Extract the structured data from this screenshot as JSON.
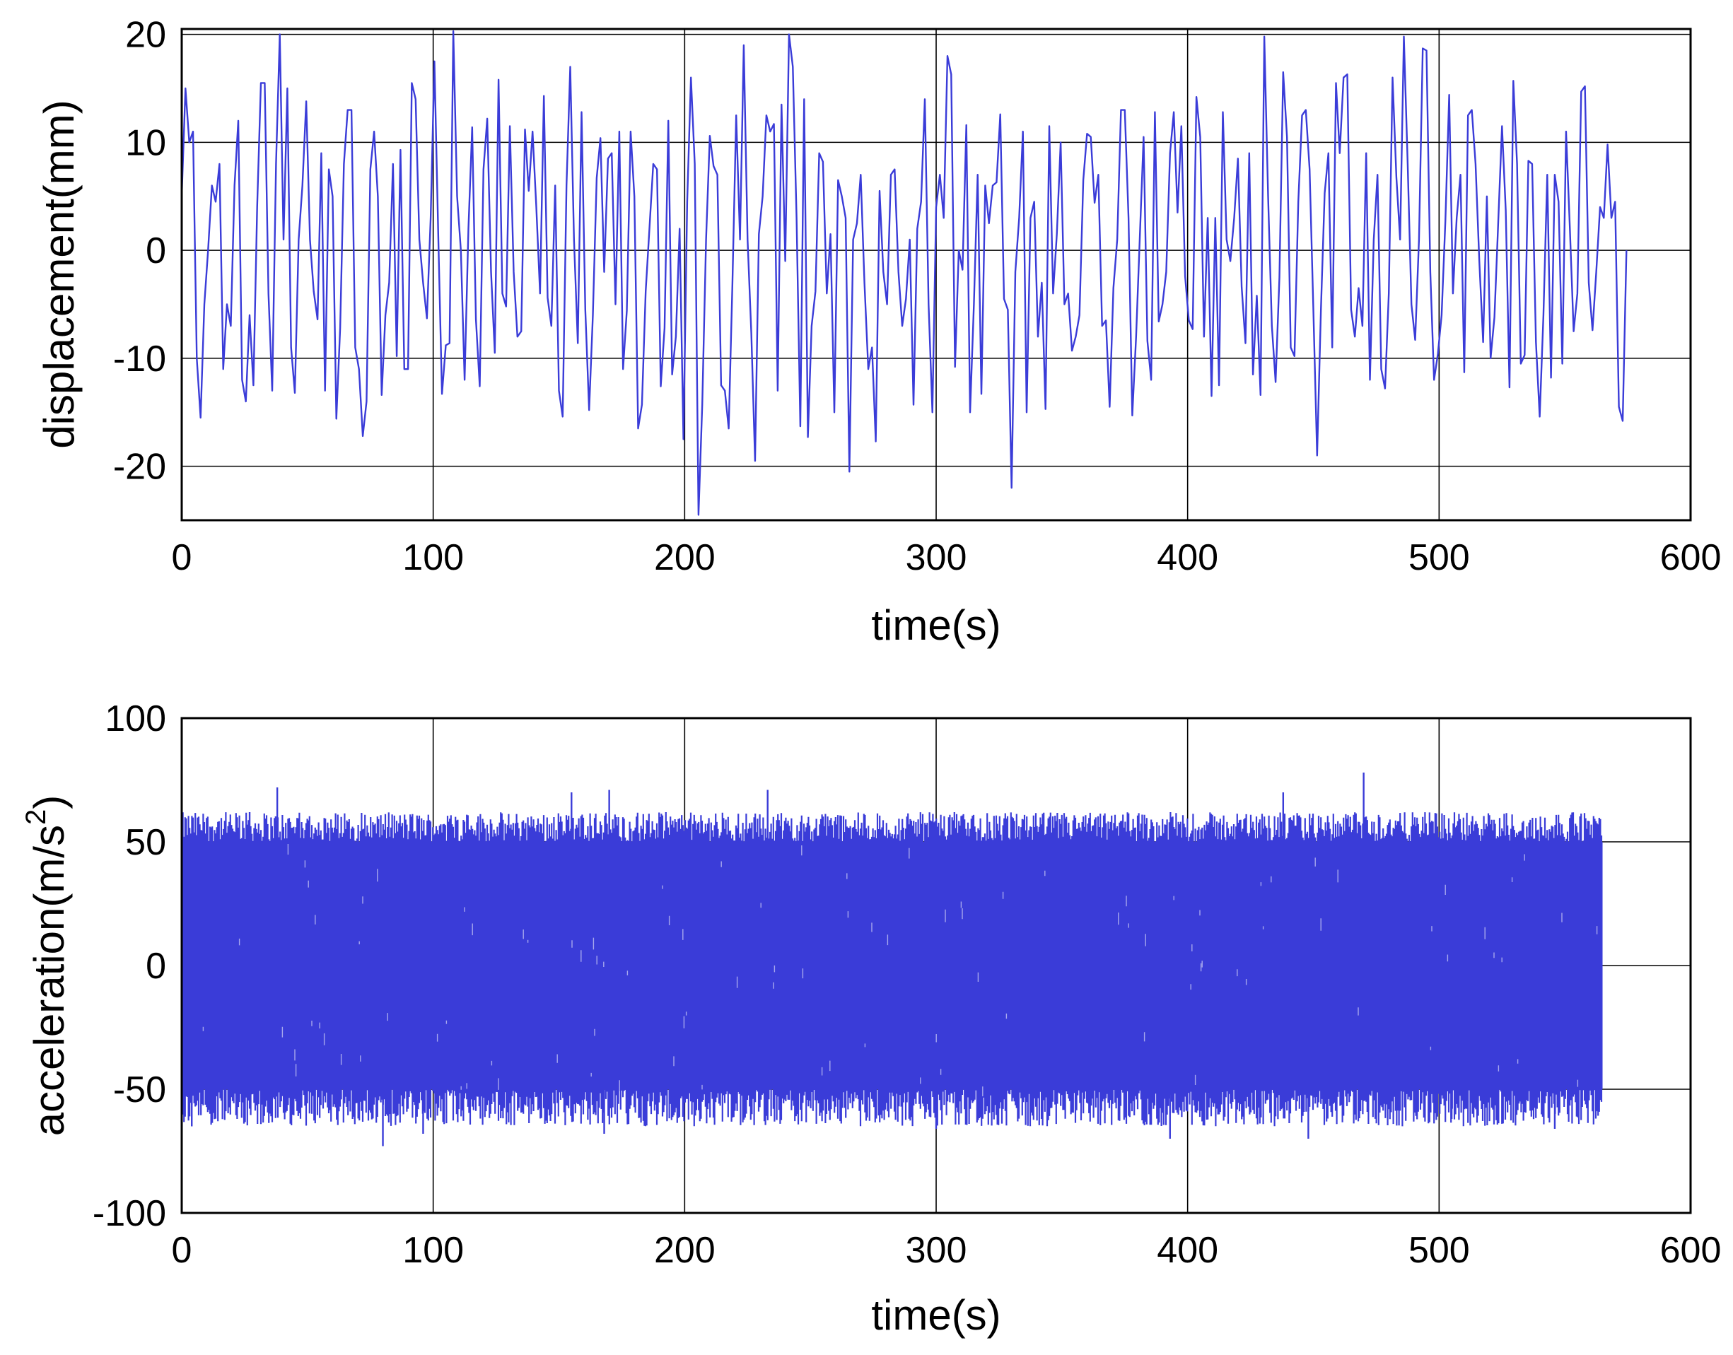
{
  "chart_data": [
    {
      "type": "line",
      "xlabel": "time(s)",
      "ylabel": "displacement(mm)",
      "xlim": [
        0,
        600
      ],
      "ylim": [
        -25,
        20.5
      ],
      "xticks": [
        "0",
        "100",
        "200",
        "300",
        "400",
        "500",
        "600"
      ],
      "yticks": [
        "20",
        "10",
        "0",
        "-10",
        "-20"
      ],
      "grid": true,
      "color": "#3a3cd8",
      "series": [
        {
          "sampling_interval_s": 1.5,
          "x_start": 0,
          "values": [
            5,
            15,
            10,
            11,
            -10,
            -15.5,
            -5,
            0,
            6,
            4.5,
            8,
            -11,
            -5,
            -7,
            6,
            12,
            -12,
            -14,
            -6,
            -12.5,
            4,
            15.5,
            15.5,
            -4,
            -13,
            8,
            20,
            1,
            15,
            -9,
            -13.2,
            1,
            6,
            13.8,
            1,
            -3.8,
            -6.4,
            9,
            -13,
            7.5,
            5,
            -15.6,
            -7.2,
            8,
            13,
            13,
            -9,
            -11,
            -17.2,
            -14,
            7.5,
            11,
            5,
            -13.4,
            -6,
            -3,
            8,
            -9.8,
            9.3,
            -11,
            -11,
            15.5,
            14,
            1,
            -3,
            -6.3,
            3,
            17.5,
            1.5,
            -13.3,
            -8.8,
            -8.6,
            20.3,
            5,
            0,
            -12,
            2,
            11.4,
            -6.4,
            -12.6,
            7.5,
            12.2,
            -2,
            -9.5,
            15.8,
            -4,
            -5.2,
            11.5,
            -2,
            -8,
            -7.5,
            11.2,
            5.5,
            11,
            4,
            -4,
            14.3,
            -4.4,
            -7,
            6,
            -13,
            -15.4,
            6,
            17,
            1,
            -8.6,
            12.8,
            -5.5,
            -14.8,
            -6,
            6.7,
            10.4,
            -2,
            8.5,
            9,
            -5,
            11,
            -11,
            -5.6,
            11,
            5,
            -16.5,
            -14.3,
            -3.8,
            2,
            8,
            7.5,
            -12.6,
            -7.2,
            12,
            -11.5,
            -8,
            2,
            -17.5,
            4.5,
            16,
            8,
            -24.5,
            -14.3,
            1,
            10.6,
            7.8,
            7,
            -12.5,
            -13,
            -16.5,
            -3,
            12.5,
            1,
            19,
            1,
            -7.7,
            -19.5,
            1.5,
            5,
            12.5,
            11,
            11.7,
            -13,
            13.5,
            -1,
            20,
            17,
            3,
            -16.3,
            14,
            -17.3,
            -7,
            -3.8,
            9,
            8.2,
            -4,
            1.5,
            -15,
            6.5,
            5,
            3,
            -20.5,
            1,
            2.5,
            7,
            -3,
            -11,
            -9,
            -17.7,
            5.5,
            -2,
            -5,
            7,
            7.5,
            -2,
            -7,
            -4.5,
            1,
            -14.3,
            2,
            4.5,
            14,
            -5,
            -15,
            4,
            7,
            3,
            18,
            16.3,
            -10.8,
            0,
            -1.8,
            11.6,
            -15,
            -5,
            7,
            -13.3,
            6,
            2.5,
            6,
            6.3,
            12.6,
            -4.5,
            -5.5,
            -22,
            -2,
            3,
            11,
            -15,
            3,
            4.5,
            -8,
            -3,
            -14.7,
            11.5,
            -4,
            1.5,
            10,
            -5,
            -4,
            -9.3,
            -8,
            -6,
            6.5,
            10.8,
            10.5,
            4.4,
            7,
            -7,
            -6.5,
            -14.5,
            -3.5,
            1,
            13,
            13,
            3,
            -15.3,
            -8,
            1.3,
            10.5,
            -8.4,
            -12,
            12.8,
            -6.6,
            -5,
            -2,
            9,
            12.8,
            3.5,
            11.5,
            -2.4,
            -6.5,
            -7.3,
            14.2,
            10.5,
            -8,
            3,
            -13.5,
            3,
            -12.5,
            12.8,
            1,
            -1,
            3,
            8.5,
            -3.4,
            -8.6,
            9,
            -11.5,
            -4.2,
            -13.4,
            19.8,
            5,
            -7,
            -12.2,
            -2.5,
            16.5,
            10.5,
            -9,
            -9.8,
            4.5,
            12.5,
            13,
            7.5,
            -5.5,
            -19,
            -5.5,
            5.3,
            9,
            -9,
            15.5,
            9,
            16,
            16.3,
            -5.5,
            -8,
            -3.5,
            -7,
            9,
            -12,
            1,
            7,
            -11,
            -12.8,
            -4,
            16,
            6.8,
            1,
            19.8,
            8,
            -5,
            -8.3,
            1,
            18.7,
            18.5,
            -2,
            -12,
            -9.6,
            -6,
            2.7,
            14.4,
            -4,
            3,
            7,
            -11.3,
            12.5,
            13,
            8,
            -1,
            -8.5,
            5,
            -10,
            -6.2,
            2.5,
            11.5,
            3.7,
            -12.7,
            15.7,
            8,
            -10.5,
            -9.7,
            8.3,
            8,
            -8.5,
            -15.4,
            -6,
            7,
            -11.8,
            7,
            4.5,
            -10.5,
            11,
            2,
            -7.5,
            -4,
            14.7,
            15.2,
            -3,
            -7.4,
            -2,
            4,
            3,
            9.8,
            3,
            4.5,
            -14.5,
            -15.8,
            0
          ]
        }
      ]
    },
    {
      "type": "line",
      "xlabel": "time(s)",
      "ylabel": "acceleration(m/s",
      "ylabel_sup": "2",
      "ylabel_tail": ")",
      "xlim": [
        0,
        600
      ],
      "ylim": [
        -100,
        100
      ],
      "xticks": [
        "0",
        "100",
        "200",
        "300",
        "400",
        "500",
        "600"
      ],
      "yticks": [
        "100",
        "50",
        "0",
        "-50",
        "-100"
      ],
      "grid": true,
      "color": "#3a3cd8",
      "series": [
        {
          "x_start": 0,
          "x_end": 565,
          "band_approx": [
            -50,
            50
          ],
          "typical_peaks": [
            -65,
            62
          ],
          "spikes": [
            {
              "x": 4,
              "y": -65
            },
            {
              "x": 27,
              "y": 62
            },
            {
              "x": 38,
              "y": 72
            },
            {
              "x": 80,
              "y": -73
            },
            {
              "x": 96,
              "y": -68
            },
            {
              "x": 155,
              "y": 70
            },
            {
              "x": 168,
              "y": -68
            },
            {
              "x": 170,
              "y": 71
            },
            {
              "x": 233,
              "y": 71
            },
            {
              "x": 300,
              "y": -66
            },
            {
              "x": 393,
              "y": -70
            },
            {
              "x": 438,
              "y": 70
            },
            {
              "x": 448,
              "y": -70
            },
            {
              "x": 470,
              "y": 78
            },
            {
              "x": 505,
              "y": -62
            },
            {
              "x": 546,
              "y": -66
            }
          ]
        }
      ]
    }
  ]
}
